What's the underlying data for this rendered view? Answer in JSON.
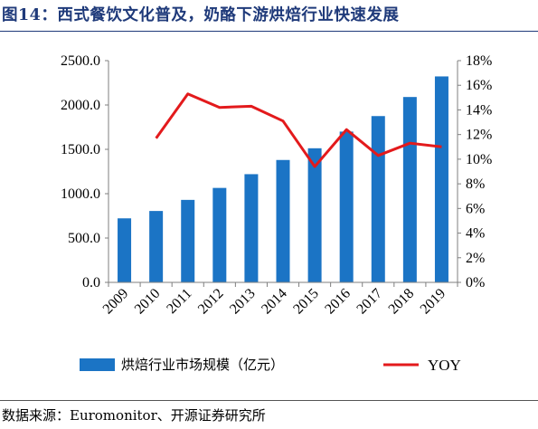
{
  "figure": {
    "title": "图14：西式餐饮文化普及，奶酪下游烘焙行业快速发展",
    "source": "数据来源：Euromonitor、开源证券研究所"
  },
  "colors": {
    "bar": "#1b74c5",
    "line": "#e31a1c",
    "title": "#1f3a7a"
  },
  "chart_data": {
    "type": "bar+line",
    "categories": [
      "2009",
      "2010",
      "2011",
      "2012",
      "2013",
      "2014",
      "2015",
      "2016",
      "2017",
      "2018",
      "2019"
    ],
    "series": [
      {
        "name": "烘焙行业市场规模（亿元）",
        "type": "bar",
        "axis": "left",
        "values": [
          722,
          805,
          930,
          1065,
          1220,
          1380,
          1512,
          1700,
          1875,
          2090,
          2322
        ]
      },
      {
        "name": "YOY",
        "type": "line",
        "axis": "right",
        "values": [
          null,
          11.7,
          15.3,
          14.2,
          14.3,
          13.1,
          9.4,
          12.4,
          10.3,
          11.3,
          11.0
        ]
      }
    ],
    "y_left": {
      "lim": [
        0,
        2500
      ],
      "ticks": [
        "0.0",
        "500.0",
        "1000.0",
        "1500.0",
        "2000.0",
        "2500.0"
      ]
    },
    "y_right": {
      "lim": [
        0,
        18
      ],
      "ticks": [
        "0%",
        "2%",
        "4%",
        "6%",
        "8%",
        "10%",
        "12%",
        "14%",
        "16%",
        "18%"
      ]
    },
    "legend": {
      "position": "bottom"
    },
    "grid": false
  }
}
